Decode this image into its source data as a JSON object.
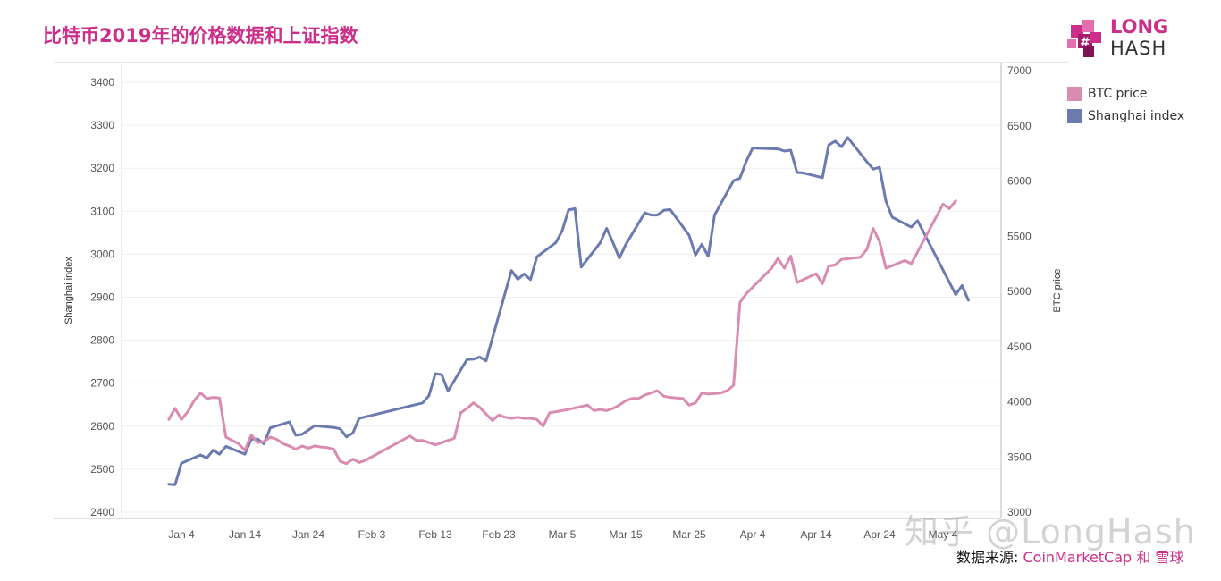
{
  "title": "比特币2019年的价格数据和上证指数",
  "logo": {
    "line1": "LONG",
    "line2": "HASH"
  },
  "source": {
    "prefix": "数据来源: ",
    "text": "CoinMarketCap 和 雪球"
  },
  "watermark": "知乎 @LongHash",
  "colors": {
    "btc": "#d98bb2",
    "shanghai": "#6b7bb0",
    "title": "#cc2f8a",
    "grid": "#eeeeee"
  },
  "chart_data": {
    "type": "line",
    "xlabel": "",
    "x_tick_labels": [
      "Jan 4",
      "Jan 14",
      "Jan 24",
      "Feb 3",
      "Feb 13",
      "Feb 23",
      "Mar 5",
      "Mar 15",
      "Mar 25",
      "Apr 4",
      "Apr 14",
      "Apr 24",
      "May 4"
    ],
    "y_left": {
      "label": "Shanghai index",
      "ticks": [
        "2400",
        "2500",
        "2600",
        "2700",
        "2800",
        "2900",
        "3000",
        "3100",
        "3200",
        "3300",
        "3400"
      ],
      "range": [
        2400,
        3400
      ]
    },
    "y_right": {
      "label": "BTC price",
      "ticks": [
        "3000",
        "3500",
        "4000",
        "4500",
        "5000",
        "5500",
        "6000",
        "6500",
        "7000"
      ],
      "range": [
        3000,
        7000
      ]
    },
    "legend": {
      "position": "top-right",
      "entries": [
        "BTC price",
        "Shanghai index"
      ]
    },
    "series": [
      {
        "name": "Shanghai index",
        "axis": "left",
        "points": [
          [
            "2019-01-02",
            2465
          ],
          [
            "2019-01-03",
            2464
          ],
          [
            "2019-01-04",
            2514
          ],
          [
            "2019-01-07",
            2533
          ],
          [
            "2019-01-08",
            2526
          ],
          [
            "2019-01-09",
            2544
          ],
          [
            "2019-01-10",
            2535
          ],
          [
            "2019-01-11",
            2553
          ],
          [
            "2019-01-14",
            2535
          ],
          [
            "2019-01-15",
            2570
          ],
          [
            "2019-01-16",
            2570
          ],
          [
            "2019-01-17",
            2559
          ],
          [
            "2019-01-18",
            2596
          ],
          [
            "2019-01-21",
            2610
          ],
          [
            "2019-01-22",
            2579
          ],
          [
            "2019-01-23",
            2581
          ],
          [
            "2019-01-24",
            2591
          ],
          [
            "2019-01-25",
            2601
          ],
          [
            "2019-01-28",
            2597
          ],
          [
            "2019-01-29",
            2594
          ],
          [
            "2019-01-30",
            2575
          ],
          [
            "2019-01-31",
            2584
          ],
          [
            "2019-02-01",
            2618
          ],
          [
            "2019-02-11",
            2654
          ],
          [
            "2019-02-12",
            2671
          ],
          [
            "2019-02-13",
            2722
          ],
          [
            "2019-02-14",
            2720
          ],
          [
            "2019-02-15",
            2682
          ],
          [
            "2019-02-18",
            2755
          ],
          [
            "2019-02-19",
            2756
          ],
          [
            "2019-02-20",
            2761
          ],
          [
            "2019-02-21",
            2752
          ],
          [
            "2019-02-22",
            2805
          ],
          [
            "2019-02-25",
            2962
          ],
          [
            "2019-02-26",
            2942
          ],
          [
            "2019-02-27",
            2954
          ],
          [
            "2019-02-28",
            2941
          ],
          [
            "2019-03-01",
            2994
          ],
          [
            "2019-03-04",
            3027
          ],
          [
            "2019-03-05",
            3055
          ],
          [
            "2019-03-06",
            3103
          ],
          [
            "2019-03-07",
            3106
          ],
          [
            "2019-03-08",
            2970
          ],
          [
            "2019-03-11",
            3027
          ],
          [
            "2019-03-12",
            3060
          ],
          [
            "2019-03-13",
            3027
          ],
          [
            "2019-03-14",
            2991
          ],
          [
            "2019-03-15",
            3022
          ],
          [
            "2019-03-18",
            3096
          ],
          [
            "2019-03-19",
            3091
          ],
          [
            "2019-03-20",
            3091
          ],
          [
            "2019-03-21",
            3102
          ],
          [
            "2019-03-22",
            3104
          ],
          [
            "2019-03-25",
            3044
          ],
          [
            "2019-03-26",
            2998
          ],
          [
            "2019-03-27",
            3023
          ],
          [
            "2019-03-28",
            2995
          ],
          [
            "2019-03-29",
            3091
          ],
          [
            "2019-04-01",
            3171
          ],
          [
            "2019-04-02",
            3177
          ],
          [
            "2019-04-03",
            3216
          ],
          [
            "2019-04-04",
            3247
          ],
          [
            "2019-04-08",
            3245
          ],
          [
            "2019-04-09",
            3240
          ],
          [
            "2019-04-10",
            3242
          ],
          [
            "2019-04-11",
            3190
          ],
          [
            "2019-04-12",
            3189
          ],
          [
            "2019-04-15",
            3178
          ],
          [
            "2019-04-16",
            3254
          ],
          [
            "2019-04-17",
            3263
          ],
          [
            "2019-04-18",
            3250
          ],
          [
            "2019-04-19",
            3271
          ],
          [
            "2019-04-22",
            3215
          ],
          [
            "2019-04-23",
            3198
          ],
          [
            "2019-04-24",
            3202
          ],
          [
            "2019-04-25",
            3124
          ],
          [
            "2019-04-26",
            3086
          ],
          [
            "2019-04-29",
            3063
          ],
          [
            "2019-04-30",
            3078
          ],
          [
            "2019-05-06",
            2906
          ],
          [
            "2019-05-07",
            2927
          ],
          [
            "2019-05-08",
            2893
          ]
        ]
      },
      {
        "name": "BTC price",
        "axis": "right",
        "points": [
          [
            "2019-01-02",
            3840
          ],
          [
            "2019-01-03",
            3940
          ],
          [
            "2019-01-04",
            3840
          ],
          [
            "2019-01-05",
            3910
          ],
          [
            "2019-01-06",
            4010
          ],
          [
            "2019-01-07",
            4080
          ],
          [
            "2019-01-08",
            4030
          ],
          [
            "2019-01-09",
            4040
          ],
          [
            "2019-01-10",
            4035
          ],
          [
            "2019-01-11",
            3680
          ],
          [
            "2019-01-13",
            3620
          ],
          [
            "2019-01-14",
            3560
          ],
          [
            "2019-01-15",
            3700
          ],
          [
            "2019-01-16",
            3630
          ],
          [
            "2019-01-17",
            3640
          ],
          [
            "2019-01-18",
            3680
          ],
          [
            "2019-01-19",
            3660
          ],
          [
            "2019-01-20",
            3620
          ],
          [
            "2019-01-21",
            3600
          ],
          [
            "2019-01-22",
            3570
          ],
          [
            "2019-01-23",
            3600
          ],
          [
            "2019-01-24",
            3580
          ],
          [
            "2019-01-25",
            3600
          ],
          [
            "2019-01-26",
            3590
          ],
          [
            "2019-01-27",
            3585
          ],
          [
            "2019-01-28",
            3570
          ],
          [
            "2019-01-29",
            3460
          ],
          [
            "2019-01-30",
            3440
          ],
          [
            "2019-01-31",
            3480
          ],
          [
            "2019-02-01",
            3450
          ],
          [
            "2019-02-02",
            3470
          ],
          [
            "2019-02-09",
            3690
          ],
          [
            "2019-02-10",
            3650
          ],
          [
            "2019-02-11",
            3650
          ],
          [
            "2019-02-12",
            3630
          ],
          [
            "2019-02-13",
            3610
          ],
          [
            "2019-02-14",
            3630
          ],
          [
            "2019-02-15",
            3650
          ],
          [
            "2019-02-16",
            3670
          ],
          [
            "2019-02-17",
            3900
          ],
          [
            "2019-02-18",
            3940
          ],
          [
            "2019-02-19",
            3990
          ],
          [
            "2019-02-20",
            3950
          ],
          [
            "2019-02-22",
            3830
          ],
          [
            "2019-02-23",
            3880
          ],
          [
            "2019-02-24",
            3860
          ],
          [
            "2019-02-25",
            3850
          ],
          [
            "2019-02-26",
            3860
          ],
          [
            "2019-02-27",
            3850
          ],
          [
            "2019-02-28",
            3850
          ],
          [
            "2019-03-01",
            3840
          ],
          [
            "2019-03-02",
            3780
          ],
          [
            "2019-03-03",
            3900
          ],
          [
            "2019-03-04",
            3910
          ],
          [
            "2019-03-06",
            3930
          ],
          [
            "2019-03-09",
            3970
          ],
          [
            "2019-03-10",
            3920
          ],
          [
            "2019-03-11",
            3930
          ],
          [
            "2019-03-12",
            3920
          ],
          [
            "2019-03-13",
            3940
          ],
          [
            "2019-03-14",
            3970
          ],
          [
            "2019-03-15",
            4010
          ],
          [
            "2019-03-16",
            4030
          ],
          [
            "2019-03-17",
            4030
          ],
          [
            "2019-03-18",
            4060
          ],
          [
            "2019-03-19",
            4080
          ],
          [
            "2019-03-20",
            4100
          ],
          [
            "2019-03-21",
            4050
          ],
          [
            "2019-03-22",
            4040
          ],
          [
            "2019-03-24",
            4030
          ],
          [
            "2019-03-25",
            3970
          ],
          [
            "2019-03-26",
            3990
          ],
          [
            "2019-03-27",
            4080
          ],
          [
            "2019-03-28",
            4070
          ],
          [
            "2019-03-30",
            4080
          ],
          [
            "2019-03-31",
            4100
          ],
          [
            "2019-04-01",
            4150
          ],
          [
            "2019-04-02",
            4900
          ],
          [
            "2019-04-03",
            4980
          ],
          [
            "2019-04-07",
            5210
          ],
          [
            "2019-04-08",
            5300
          ],
          [
            "2019-04-09",
            5210
          ],
          [
            "2019-04-10",
            5320
          ],
          [
            "2019-04-11",
            5080
          ],
          [
            "2019-04-14",
            5160
          ],
          [
            "2019-04-15",
            5070
          ],
          [
            "2019-04-16",
            5230
          ],
          [
            "2019-04-17",
            5240
          ],
          [
            "2019-04-18",
            5290
          ],
          [
            "2019-04-21",
            5310
          ],
          [
            "2019-04-22",
            5380
          ],
          [
            "2019-04-23",
            5570
          ],
          [
            "2019-04-24",
            5450
          ],
          [
            "2019-04-25",
            5210
          ],
          [
            "2019-04-28",
            5280
          ],
          [
            "2019-04-29",
            5250
          ],
          [
            "2019-05-04",
            5790
          ],
          [
            "2019-05-05",
            5750
          ],
          [
            "2019-05-06",
            5820
          ]
        ]
      }
    ]
  }
}
